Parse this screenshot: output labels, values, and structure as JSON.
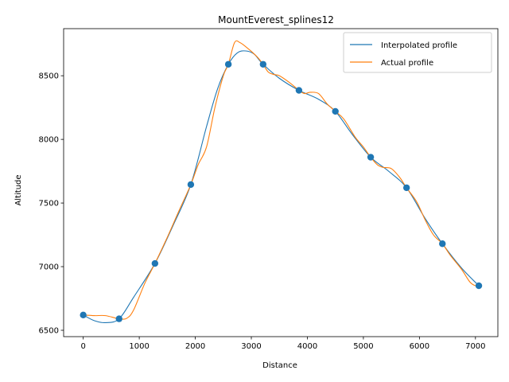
{
  "chart_data": {
    "type": "line",
    "title": "MountEverest_splines12",
    "xlabel": "Distance",
    "ylabel": "Altitude",
    "xlim": [
      -350,
      7400
    ],
    "ylim": [
      6450,
      8870
    ],
    "xticks": [
      0,
      1000,
      2000,
      3000,
      4000,
      5000,
      6000,
      7000
    ],
    "yticks": [
      6500,
      7000,
      7500,
      8000,
      8500
    ],
    "legend_position": "top-right",
    "grid": false,
    "colors": {
      "interpolated": "#1f77b4",
      "actual": "#ff7f0e",
      "points": "#1f77b4"
    },
    "series": [
      {
        "name": "Interpolated profile",
        "kind": "line",
        "x": [
          0,
          200,
          400,
          640,
          900,
          1280,
          1600,
          1920,
          2200,
          2400,
          2590,
          2750,
          2900,
          3050,
          3200,
          3500,
          3850,
          4200,
          4500,
          4800,
          5130,
          5450,
          5770,
          6100,
          6410,
          6750,
          7060
        ],
        "y": [
          6620,
          6575,
          6560,
          6590,
          6760,
          7025,
          7320,
          7645,
          8100,
          8400,
          8590,
          8680,
          8695,
          8670,
          8595,
          8480,
          8385,
          8315,
          8220,
          8040,
          7860,
          7750,
          7620,
          7380,
          7180,
          6990,
          6850
        ]
      },
      {
        "name": "Actual profile",
        "kind": "line",
        "x": [
          0,
          200,
          400,
          640,
          780,
          900,
          1100,
          1280,
          1500,
          1700,
          1920,
          2050,
          2200,
          2350,
          2500,
          2590,
          2700,
          2800,
          2950,
          3100,
          3210,
          3300,
          3400,
          3500,
          3700,
          3850,
          3950,
          4050,
          4200,
          4350,
          4500,
          4650,
          4850,
          5000,
          5130,
          5250,
          5350,
          5500,
          5650,
          5770,
          5950,
          6100,
          6250,
          6410,
          6550,
          6750,
          6900,
          7000,
          7060
        ],
        "y": [
          6620,
          6615,
          6615,
          6590,
          6595,
          6660,
          6870,
          7025,
          7230,
          7430,
          7645,
          7800,
          7940,
          8250,
          8500,
          8590,
          8760,
          8760,
          8710,
          8650,
          8590,
          8530,
          8510,
          8500,
          8440,
          8385,
          8360,
          8370,
          8360,
          8280,
          8220,
          8160,
          8020,
          7940,
          7860,
          7800,
          7780,
          7770,
          7700,
          7620,
          7510,
          7370,
          7250,
          7180,
          7090,
          6980,
          6880,
          6850,
          6850
        ]
      },
      {
        "name": "",
        "kind": "scatter",
        "x": [
          0,
          640,
          1280,
          1920,
          2590,
          3210,
          3850,
          4500,
          5130,
          5770,
          6410,
          7060
        ],
        "y": [
          6620,
          6590,
          7025,
          7645,
          8590,
          8590,
          8385,
          8220,
          7860,
          7620,
          7180,
          6850
        ]
      }
    ]
  }
}
